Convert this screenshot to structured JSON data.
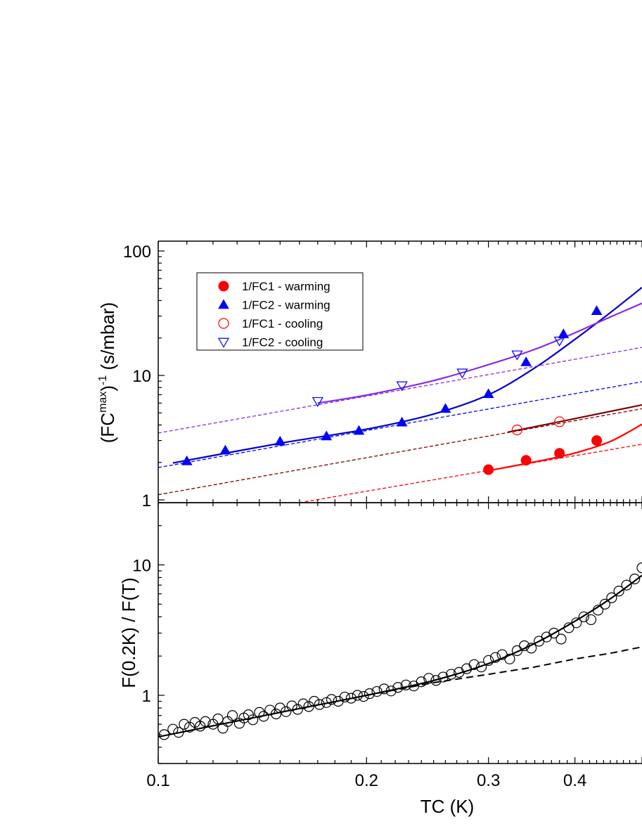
{
  "chart_data": [
    {
      "type": "scatter",
      "panel": "top",
      "xscale": "log",
      "yscale": "log",
      "xlim": [
        0.1,
        0.5
      ],
      "ylim": [
        0.95,
        120
      ],
      "ylabel_main": "(FC",
      "ylabel_sup1": "max",
      "ylabel_mid": ")",
      "ylabel_sup2": "-1",
      "ylabel_unit": " (s/mbar)",
      "yticks": [
        {
          "value": 1,
          "label": "1"
        },
        {
          "value": 10,
          "label": "10"
        },
        {
          "value": 100,
          "label": "100"
        }
      ],
      "legend_position": "top-left",
      "series": [
        {
          "name": "1/FC1 - warming",
          "marker": "circle-filled",
          "color": "#ff0000",
          "x": [
            0.3,
            0.34,
            0.38,
            0.43
          ],
          "y": [
            1.75,
            2.08,
            2.37,
            3.0
          ]
        },
        {
          "name": "1/FC2 - warming",
          "marker": "triangle-up-filled",
          "color": "#0000ff",
          "x": [
            0.11,
            0.125,
            0.15,
            0.175,
            0.195,
            0.225,
            0.26,
            0.3,
            0.34,
            0.385,
            0.43
          ],
          "y": [
            2.05,
            2.5,
            2.95,
            3.25,
            3.6,
            4.2,
            5.4,
            7.1,
            12.8,
            21.5,
            33.0
          ]
        },
        {
          "name": "1/FC1 - cooling",
          "marker": "circle-open",
          "color": "#ff0000",
          "x": [
            0.33,
            0.38
          ],
          "y": [
            3.65,
            4.25
          ]
        },
        {
          "name": "1/FC2 - cooling",
          "marker": "triangle-down-open",
          "color": "#0000ff",
          "x": [
            0.17,
            0.225,
            0.275,
            0.33,
            0.38
          ],
          "y": [
            6.2,
            8.3,
            10.5,
            14.7,
            19.0
          ]
        }
      ],
      "fit_lines": [
        {
          "color": "#ff0000",
          "style": "solid",
          "x": [
            0.3,
            0.35,
            0.4,
            0.45,
            0.5
          ],
          "y": [
            1.72,
            2.02,
            2.38,
            2.95,
            4.05
          ]
        },
        {
          "color": "#800000",
          "style": "solid",
          "x": [
            0.32,
            0.4,
            0.5
          ],
          "y": [
            3.5,
            4.5,
            5.8
          ]
        },
        {
          "color": "#0000cc",
          "style": "solid",
          "x": [
            0.105,
            0.15,
            0.2,
            0.25,
            0.3,
            0.35,
            0.4,
            0.45,
            0.5
          ],
          "y": [
            1.98,
            2.85,
            3.7,
            4.9,
            7.0,
            11.5,
            19.5,
            32.0,
            51.0
          ]
        },
        {
          "color": "#8a2be2",
          "style": "solid",
          "x": [
            0.17,
            0.2,
            0.25,
            0.3,
            0.35,
            0.4,
            0.45,
            0.5
          ],
          "y": [
            6.0,
            6.95,
            9.1,
            12.2,
            16.2,
            22.0,
            29.5,
            38.0
          ]
        },
        {
          "color": "#ff0000",
          "style": "dashed",
          "x": [
            0.16,
            0.5
          ],
          "y": [
            0.95,
            2.8
          ]
        },
        {
          "color": "#800000",
          "style": "dashed",
          "x": [
            0.1,
            0.5
          ],
          "y": [
            1.1,
            5.4
          ]
        },
        {
          "color": "#0000ff",
          "style": "dashed",
          "x": [
            0.1,
            0.5
          ],
          "y": [
            1.82,
            8.9
          ]
        },
        {
          "color": "#8a2be2",
          "style": "dashed",
          "x": [
            0.1,
            0.5
          ],
          "y": [
            3.45,
            16.8
          ]
        }
      ]
    },
    {
      "type": "scatter",
      "panel": "bottom",
      "xscale": "log",
      "yscale": "log",
      "xlim": [
        0.1,
        0.5
      ],
      "ylim": [
        0.3,
        30
      ],
      "xlabel": "TC (K)",
      "ylabel": "F(0.2K) / F(T)",
      "xticks": [
        {
          "value": 0.1,
          "label": "0.1"
        },
        {
          "value": 0.2,
          "label": "0.2"
        },
        {
          "value": 0.3,
          "label": "0.3"
        },
        {
          "value": 0.4,
          "label": "0.4"
        }
      ],
      "yticks": [
        {
          "value": 1,
          "label": "1"
        },
        {
          "value": 10,
          "label": "10"
        }
      ],
      "series": [
        {
          "name": "",
          "marker": "circle-open",
          "color": "#000000",
          "x": [
            0.102,
            0.105,
            0.107,
            0.109,
            0.111,
            0.113,
            0.115,
            0.117,
            0.12,
            0.122,
            0.124,
            0.126,
            0.128,
            0.131,
            0.133,
            0.135,
            0.137,
            0.14,
            0.142,
            0.145,
            0.148,
            0.15,
            0.153,
            0.156,
            0.159,
            0.162,
            0.165,
            0.168,
            0.171,
            0.175,
            0.178,
            0.182,
            0.186,
            0.19,
            0.194,
            0.198,
            0.202,
            0.207,
            0.212,
            0.217,
            0.222,
            0.228,
            0.234,
            0.24,
            0.246,
            0.252,
            0.258,
            0.265,
            0.272,
            0.279,
            0.286,
            0.293,
            0.3,
            0.307,
            0.314,
            0.322,
            0.33,
            0.338,
            0.346,
            0.355,
            0.364,
            0.373,
            0.382,
            0.392,
            0.402,
            0.412,
            0.422,
            0.432,
            0.442,
            0.452,
            0.463,
            0.475,
            0.488,
            0.5
          ],
          "y": [
            0.5,
            0.55,
            0.52,
            0.6,
            0.57,
            0.62,
            0.58,
            0.63,
            0.6,
            0.66,
            0.56,
            0.63,
            0.7,
            0.61,
            0.67,
            0.71,
            0.65,
            0.74,
            0.69,
            0.77,
            0.72,
            0.8,
            0.75,
            0.83,
            0.78,
            0.86,
            0.82,
            0.9,
            0.85,
            0.88,
            0.93,
            0.9,
            0.97,
            0.95,
            1.0,
            0.98,
            1.03,
            1.07,
            1.12,
            1.08,
            1.15,
            1.2,
            1.18,
            1.27,
            1.35,
            1.3,
            1.38,
            1.45,
            1.5,
            1.6,
            1.72,
            1.65,
            1.85,
            1.95,
            2.05,
            1.9,
            2.2,
            2.4,
            2.3,
            2.6,
            2.8,
            3.0,
            2.7,
            3.3,
            3.6,
            4.0,
            3.8,
            4.5,
            5.0,
            5.6,
            6.3,
            7.0,
            7.8,
            9.5
          ]
        }
      ],
      "fit_lines": [
        {
          "color": "#000000",
          "style": "solid",
          "x": [
            0.1,
            0.15,
            0.2,
            0.25,
            0.3,
            0.35,
            0.4,
            0.45,
            0.5
          ],
          "y": [
            0.48,
            0.74,
            1.0,
            1.3,
            1.75,
            2.5,
            3.7,
            5.5,
            8.3
          ]
        },
        {
          "color": "#000000",
          "style": "dashed",
          "x": [
            0.2,
            0.25,
            0.3,
            0.35,
            0.4,
            0.45,
            0.5
          ],
          "y": [
            1.0,
            1.25,
            1.45,
            1.65,
            1.9,
            2.1,
            2.35
          ]
        }
      ]
    }
  ]
}
